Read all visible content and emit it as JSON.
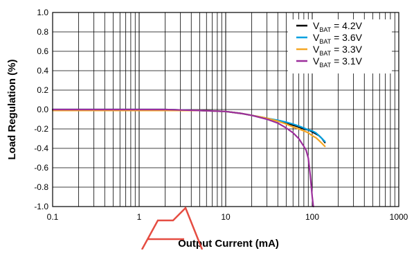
{
  "chart_data": {
    "type": "line",
    "xlabel": "Output Current (mA)",
    "ylabel": "Load Regulation (%)",
    "xscale": "log",
    "xlim": [
      0.1,
      1000
    ],
    "ylim": [
      -1.0,
      1.0
    ],
    "xticks": [
      {
        "value": 0.1,
        "label": "0.1"
      },
      {
        "value": 1,
        "label": "1"
      },
      {
        "value": 10,
        "label": "10"
      },
      {
        "value": 100,
        "label": "100"
      },
      {
        "value": 1000,
        "label": "1000"
      }
    ],
    "yticks": [
      {
        "value": 1.0,
        "label": "1.0"
      },
      {
        "value": 0.8,
        "label": "0.8"
      },
      {
        "value": 0.6,
        "label": "0.6"
      },
      {
        "value": 0.4,
        "label": "0.4"
      },
      {
        "value": 0.2,
        "label": "0.2"
      },
      {
        "value": 0.0,
        "label": "0.0"
      },
      {
        "value": -0.2,
        "label": "-0.2"
      },
      {
        "value": -0.4,
        "label": "-0.4"
      },
      {
        "value": -0.6,
        "label": "-0.6"
      },
      {
        "value": -0.8,
        "label": "-0.8"
      },
      {
        "value": -1.0,
        "label": "-1.0"
      }
    ],
    "grid": true,
    "legend_position": "top-right",
    "series": [
      {
        "label": {
          "main": "V",
          "sub": "BAT",
          "rest": " = 4.2V"
        },
        "color": "#000000",
        "x": [
          0.1,
          0.2,
          0.5,
          1,
          2,
          5,
          10,
          15,
          20,
          30,
          40,
          50,
          60,
          70,
          80,
          90,
          100,
          110,
          120,
          130,
          140
        ],
        "y": [
          0.0,
          0.0,
          0.0,
          0.0,
          0.0,
          -0.01,
          -0.02,
          -0.04,
          -0.06,
          -0.09,
          -0.12,
          -0.14,
          -0.16,
          -0.18,
          -0.2,
          -0.21,
          -0.23,
          -0.25,
          -0.27,
          -0.3,
          -0.34
        ]
      },
      {
        "label": {
          "main": "V",
          "sub": "BAT",
          "rest": " = 3.6V"
        },
        "color": "#00a0e0",
        "x": [
          0.1,
          0.2,
          0.5,
          1,
          2,
          5,
          10,
          15,
          20,
          30,
          40,
          50,
          60,
          70,
          80,
          90,
          100,
          110,
          120,
          130,
          140
        ],
        "y": [
          0.0,
          0.0,
          0.0,
          0.0,
          0.0,
          -0.01,
          -0.02,
          -0.04,
          -0.06,
          -0.09,
          -0.11,
          -0.13,
          -0.15,
          -0.17,
          -0.19,
          -0.21,
          -0.22,
          -0.24,
          -0.27,
          -0.3,
          -0.33
        ]
      },
      {
        "label": {
          "main": "V",
          "sub": "BAT",
          "rest": " = 3.3V"
        },
        "color": "#f5a623",
        "x": [
          0.1,
          0.2,
          0.5,
          1,
          2,
          5,
          10,
          15,
          20,
          30,
          40,
          50,
          60,
          70,
          80,
          90,
          100,
          110,
          120,
          130,
          140
        ],
        "y": [
          -0.01,
          -0.01,
          -0.01,
          -0.01,
          -0.01,
          -0.01,
          -0.02,
          -0.04,
          -0.06,
          -0.09,
          -0.12,
          -0.15,
          -0.18,
          -0.2,
          -0.22,
          -0.24,
          -0.27,
          -0.29,
          -0.32,
          -0.35,
          -0.38
        ]
      },
      {
        "label": {
          "main": "V",
          "sub": "BAT",
          "rest": " = 3.1V"
        },
        "color": "#9b2d9b",
        "x": [
          0.1,
          0.2,
          0.5,
          1,
          2,
          5,
          10,
          15,
          20,
          30,
          40,
          50,
          60,
          70,
          80,
          85,
          90,
          95,
          100,
          103
        ],
        "y": [
          0.0,
          0.0,
          0.0,
          0.0,
          0.0,
          -0.01,
          -0.02,
          -0.04,
          -0.06,
          -0.1,
          -0.14,
          -0.19,
          -0.24,
          -0.3,
          -0.38,
          -0.42,
          -0.5,
          -0.68,
          -0.9,
          -1.0
        ]
      }
    ]
  }
}
